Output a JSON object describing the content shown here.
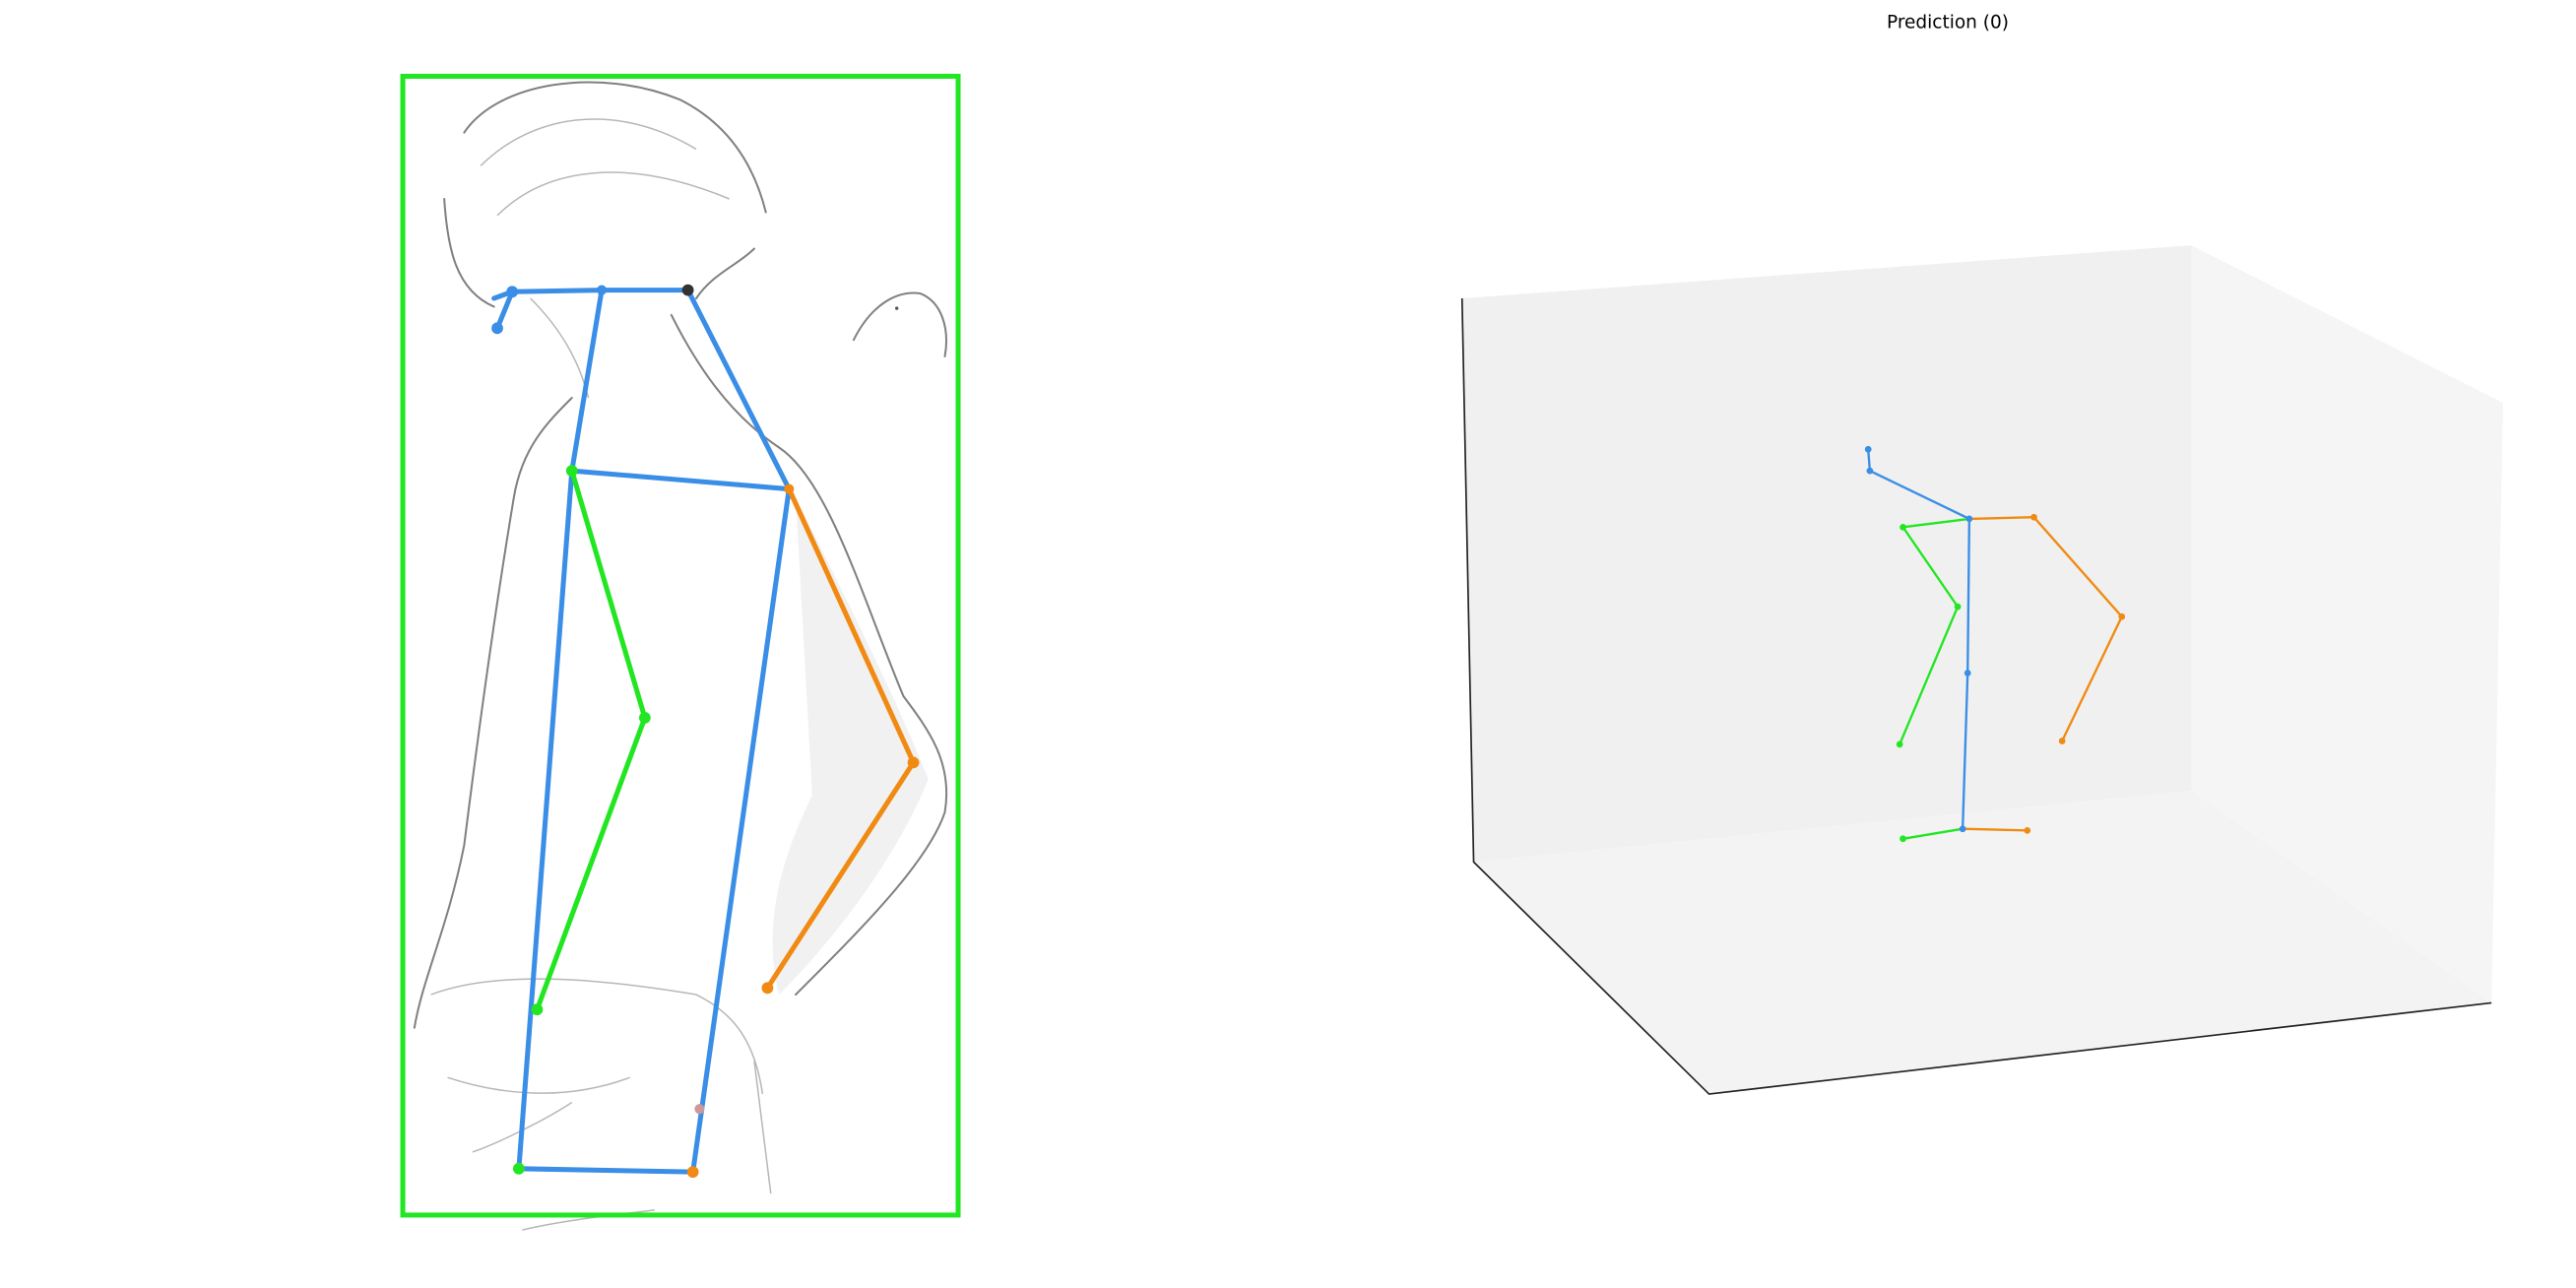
{
  "title": "Prediction (0)"
}
